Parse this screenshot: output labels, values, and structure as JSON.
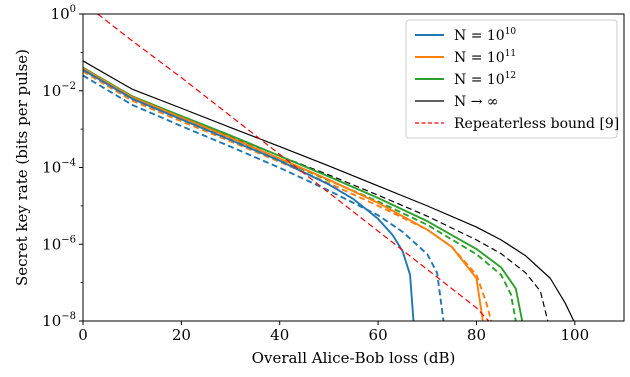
{
  "chart_data": {
    "type": "line",
    "title": "",
    "xlabel": "Overall Alice-Bob loss (dB)",
    "ylabel": "Secret key rate (bits per pulse)",
    "xlim": [
      0,
      110
    ],
    "ylim": [
      1e-08,
      1
    ],
    "yscale": "log",
    "grid": false,
    "legend_position": "top-right",
    "x_ticks": [
      "0",
      "20",
      "40",
      "60",
      "80",
      "100"
    ],
    "y_ticks": [
      {
        "base": "10",
        "exp": "0"
      },
      {
        "base": "10",
        "exp": "−2"
      },
      {
        "base": "10",
        "exp": "−4"
      },
      {
        "base": "10",
        "exp": "−6"
      },
      {
        "base": "10",
        "exp": "−8"
      }
    ],
    "legend": [
      {
        "label": "N = 10^10",
        "pre": "N = 10",
        "sup": "10",
        "color": "#1f77b4",
        "dash": "solid"
      },
      {
        "label": "N = 10^11",
        "pre": "N = 10",
        "sup": "11",
        "color": "#ff7f0e",
        "dash": "solid"
      },
      {
        "label": "N = 10^12",
        "pre": "N = 10",
        "sup": "12",
        "color": "#2ca02c",
        "dash": "solid"
      },
      {
        "label": "N → ∞",
        "pre": "N → ∞",
        "sup": "",
        "color": "#000000",
        "dash": "solid"
      },
      {
        "label": "Repeaterless bound [9]",
        "pre": "Repeaterless bound [9]",
        "sup": "",
        "color": "#ff0000",
        "dash": "dashed"
      }
    ],
    "series": [
      {
        "color": "#000000",
        "dash": "solid",
        "points": [
          [
            0,
            0.06
          ],
          [
            10,
            0.011
          ],
          [
            20,
            0.0035
          ],
          [
            30,
            0.0011
          ],
          [
            40,
            0.00035
          ],
          [
            50,
            0.00011
          ],
          [
            60,
            3.3e-05
          ],
          [
            70,
            1e-05
          ],
          [
            80,
            2.8e-06
          ],
          [
            85,
            1.3e-06
          ],
          [
            90,
            5e-07
          ],
          [
            95,
            1.3e-07
          ],
          [
            98,
            3e-08
          ],
          [
            99.8,
            1e-08
          ]
        ]
      },
      {
        "color": "#000000",
        "dash": "dashed",
        "points": [
          [
            0,
            0.035
          ],
          [
            10,
            0.0063
          ],
          [
            20,
            0.002
          ],
          [
            30,
            0.00064
          ],
          [
            40,
            0.0002
          ],
          [
            50,
            6.4e-05
          ],
          [
            60,
            1.9e-05
          ],
          [
            70,
            5.4e-06
          ],
          [
            80,
            1.3e-06
          ],
          [
            85,
            5.7e-07
          ],
          [
            90,
            1.8e-07
          ],
          [
            93,
            6e-08
          ],
          [
            94.5,
            1e-08
          ]
        ]
      },
      {
        "color": "#2ca02c",
        "dash": "solid",
        "points": [
          [
            0,
            0.04
          ],
          [
            10,
            0.0072
          ],
          [
            20,
            0.0022
          ],
          [
            30,
            0.00068
          ],
          [
            40,
            0.0002
          ],
          [
            50,
            5.8e-05
          ],
          [
            60,
            1.6e-05
          ],
          [
            70,
            4e-06
          ],
          [
            80,
            7.5e-07
          ],
          [
            85,
            2.5e-07
          ],
          [
            88,
            7e-08
          ],
          [
            89.3,
            1e-08
          ]
        ]
      },
      {
        "color": "#2ca02c",
        "dash": "dashed",
        "points": [
          [
            0,
            0.035
          ],
          [
            10,
            0.006
          ],
          [
            20,
            0.0018
          ],
          [
            30,
            0.00055
          ],
          [
            40,
            0.00016
          ],
          [
            50,
            4.6e-05
          ],
          [
            60,
            1.3e-05
          ],
          [
            70,
            3.2e-06
          ],
          [
            80,
            5.5e-07
          ],
          [
            85,
            1.6e-07
          ],
          [
            87,
            5e-08
          ],
          [
            88,
            1e-08
          ]
        ]
      },
      {
        "color": "#ff7f0e",
        "dash": "solid",
        "points": [
          [
            0,
            0.038
          ],
          [
            10,
            0.0068
          ],
          [
            20,
            0.002
          ],
          [
            30,
            0.0006
          ],
          [
            40,
            0.00017
          ],
          [
            50,
            4.8e-05
          ],
          [
            60,
            1.2e-05
          ],
          [
            70,
            2.4e-06
          ],
          [
            75,
            8.5e-07
          ],
          [
            80,
            1.3e-07
          ],
          [
            81.3,
            1e-08
          ]
        ]
      },
      {
        "color": "#ff7f0e",
        "dash": "dashed",
        "points": [
          [
            0,
            0.032
          ],
          [
            10,
            0.0055
          ],
          [
            20,
            0.0016
          ],
          [
            30,
            0.00048
          ],
          [
            40,
            0.00014
          ],
          [
            50,
            3.9e-05
          ],
          [
            60,
            1e-05
          ],
          [
            70,
            2.4e-06
          ],
          [
            75,
            8.5e-07
          ],
          [
            80,
            1.6e-07
          ],
          [
            82,
            3e-08
          ],
          [
            83,
            1e-08
          ]
        ]
      },
      {
        "color": "#1f77b4",
        "dash": "solid",
        "points": [
          [
            0,
            0.035
          ],
          [
            10,
            0.0062
          ],
          [
            20,
            0.0018
          ],
          [
            30,
            0.00052
          ],
          [
            40,
            0.00015
          ],
          [
            50,
            3.6e-05
          ],
          [
            55,
            1.5e-05
          ],
          [
            60,
            4.6e-06
          ],
          [
            63,
            1.7e-06
          ],
          [
            65,
            6.5e-07
          ],
          [
            66.5,
            1.6e-07
          ],
          [
            67.2,
            1e-08
          ]
        ]
      },
      {
        "color": "#1f77b4",
        "dash": "dashed",
        "points": [
          [
            0,
            0.025
          ],
          [
            10,
            0.0043
          ],
          [
            20,
            0.0012
          ],
          [
            30,
            0.00035
          ],
          [
            40,
            9.8e-05
          ],
          [
            50,
            2.5e-05
          ],
          [
            60,
            5.7e-06
          ],
          [
            65,
            2.1e-06
          ],
          [
            70,
            5.5e-07
          ],
          [
            72,
            1.8e-07
          ],
          [
            73.3,
            1e-08
          ]
        ]
      },
      {
        "color": "#ff0000",
        "dash": "dashed",
        "points": [
          [
            3,
            1
          ],
          [
            10,
            0.2
          ],
          [
            20,
            0.022
          ],
          [
            30,
            0.0022
          ],
          [
            40,
            0.00022
          ],
          [
            50,
            2.2e-05
          ],
          [
            60,
            2.2e-06
          ],
          [
            70,
            2.2e-07
          ],
          [
            80,
            2.2e-08
          ],
          [
            82.5,
            1e-08
          ]
        ]
      }
    ]
  }
}
